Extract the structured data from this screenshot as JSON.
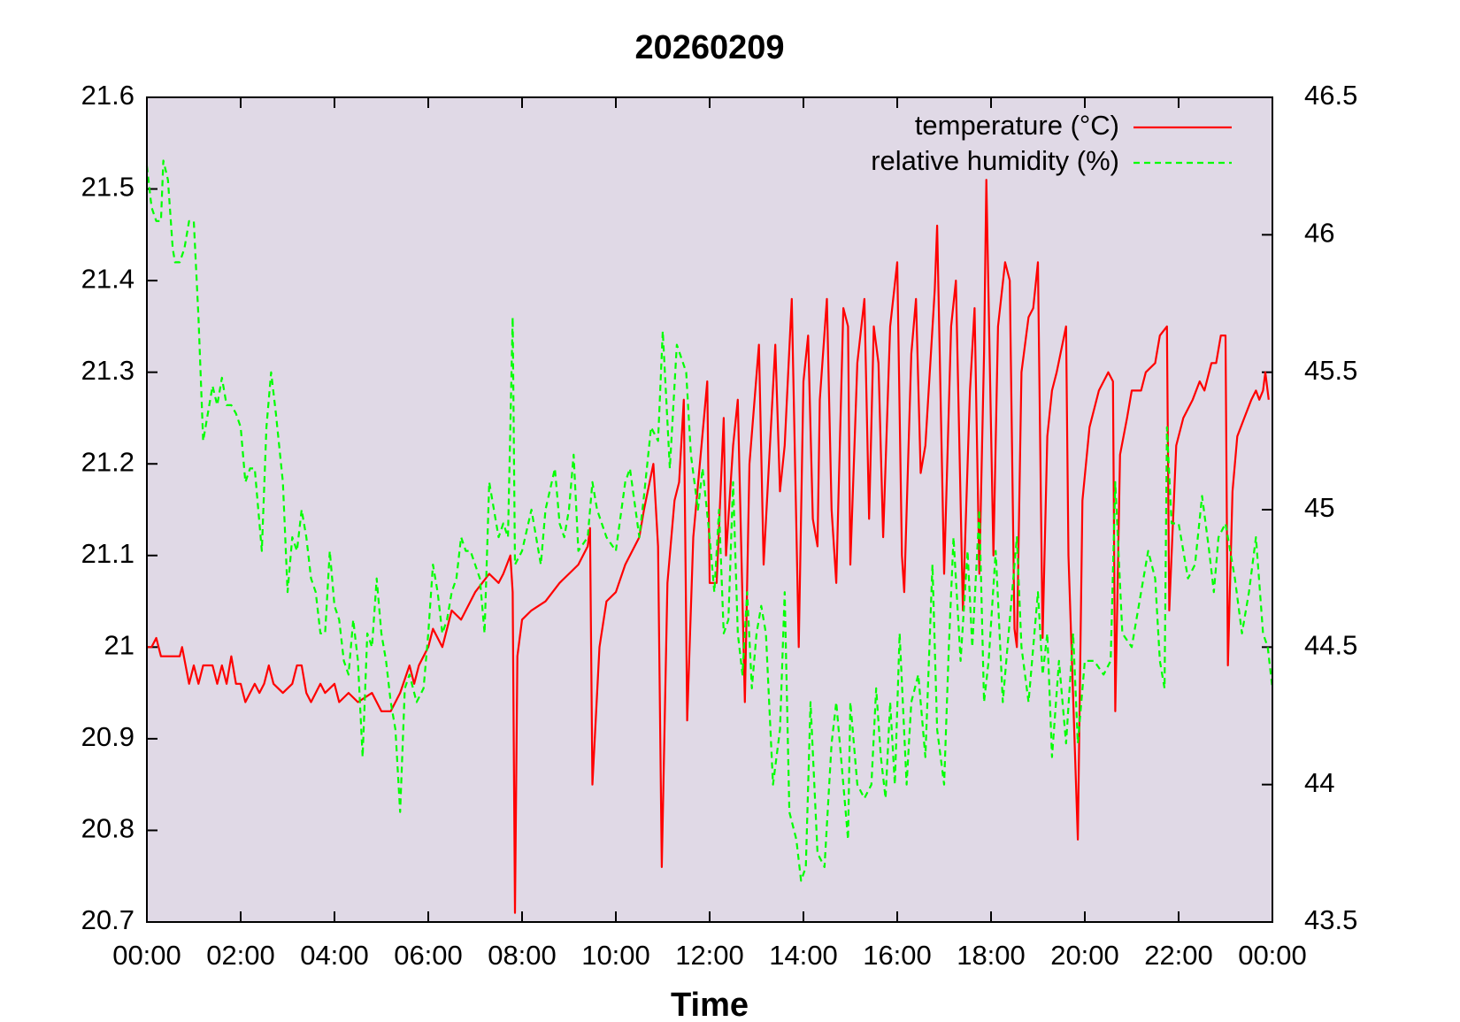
{
  "chart_data": {
    "type": "line",
    "title": "20260209",
    "xlabel": "Time",
    "xlim": [
      0,
      24
    ],
    "xticks": [
      {
        "value": 0,
        "label": "00:00"
      },
      {
        "value": 2,
        "label": "02:00"
      },
      {
        "value": 4,
        "label": "04:00"
      },
      {
        "value": 6,
        "label": "06:00"
      },
      {
        "value": 8,
        "label": "08:00"
      },
      {
        "value": 10,
        "label": "10:00"
      },
      {
        "value": 12,
        "label": "12:00"
      },
      {
        "value": 14,
        "label": "14:00"
      },
      {
        "value": 16,
        "label": "16:00"
      },
      {
        "value": 18,
        "label": "18:00"
      },
      {
        "value": 20,
        "label": "20:00"
      },
      {
        "value": 22,
        "label": "22:00"
      },
      {
        "value": 24,
        "label": "00:00"
      }
    ],
    "ylim": [
      20.7,
      21.6
    ],
    "yticks": [
      20.7,
      20.8,
      20.9,
      21,
      21.1,
      21.2,
      21.3,
      21.4,
      21.5,
      21.6
    ],
    "y2lim": [
      43.5,
      46.5
    ],
    "y2ticks": [
      43.5,
      44,
      44.5,
      45,
      45.5,
      46,
      46.5
    ],
    "legend": "top-right",
    "background": "#e0d9e6",
    "series": [
      {
        "name": "temperature (°C)",
        "color": "#ff0000",
        "style": "solid",
        "x": [
          0,
          0.1,
          0.2,
          0.3,
          0.7,
          0.75,
          0.9,
          1.0,
          1.1,
          1.2,
          1.4,
          1.5,
          1.6,
          1.7,
          1.8,
          1.9,
          2.0,
          2.1,
          2.3,
          2.4,
          2.5,
          2.6,
          2.7,
          2.9,
          3.1,
          3.2,
          3.3,
          3.4,
          3.5,
          3.7,
          3.8,
          4.0,
          4.1,
          4.3,
          4.5,
          4.8,
          5.0,
          5.2,
          5.4,
          5.6,
          5.7,
          5.8,
          6.0,
          6.1,
          6.3,
          6.5,
          6.7,
          6.9,
          7.0,
          7.3,
          7.5,
          7.6,
          7.75,
          7.8,
          7.85,
          7.9,
          8.0,
          8.2,
          8.5,
          8.8,
          9.0,
          9.2,
          9.4,
          9.45,
          9.5,
          9.65,
          9.8,
          10.0,
          10.2,
          10.5,
          10.6,
          10.8,
          10.9,
          10.98,
          11.1,
          11.25,
          11.35,
          11.45,
          11.52,
          11.65,
          11.95,
          12.0,
          12.15,
          12.3,
          12.35,
          12.5,
          12.6,
          12.75,
          12.85,
          13.05,
          13.15,
          13.4,
          13.5,
          13.6,
          13.75,
          13.9,
          14.0,
          14.1,
          14.2,
          14.3,
          14.35,
          14.5,
          14.6,
          14.7,
          14.85,
          14.95,
          15.0,
          15.15,
          15.3,
          15.4,
          15.5,
          15.6,
          15.7,
          15.85,
          16.0,
          16.1,
          16.15,
          16.3,
          16.4,
          16.5,
          16.6,
          16.8,
          16.85,
          17.0,
          17.15,
          17.25,
          17.4,
          17.55,
          17.65,
          17.75,
          17.85,
          17.9,
          18.05,
          18.15,
          18.3,
          18.4,
          18.5,
          18.55,
          18.65,
          18.8,
          18.9,
          19.0,
          19.1,
          19.2,
          19.3,
          19.4,
          19.6,
          19.65,
          19.85,
          19.95,
          20.1,
          20.3,
          20.5,
          20.6,
          20.65,
          20.75,
          20.9,
          21.0,
          21.2,
          21.3,
          21.5,
          21.6,
          21.75,
          21.8,
          21.95,
          22.1,
          22.3,
          22.45,
          22.55,
          22.7,
          22.8,
          22.9,
          23.0,
          23.05,
          23.15,
          23.25,
          23.4,
          23.55,
          23.65,
          23.72,
          23.8,
          23.85,
          23.92
        ],
        "values": [
          21.0,
          21.0,
          21.01,
          20.99,
          20.99,
          21.0,
          20.96,
          20.98,
          20.96,
          20.98,
          20.98,
          20.96,
          20.98,
          20.96,
          20.99,
          20.96,
          20.96,
          20.94,
          20.96,
          20.95,
          20.96,
          20.98,
          20.96,
          20.95,
          20.96,
          20.98,
          20.98,
          20.95,
          20.94,
          20.96,
          20.95,
          20.96,
          20.94,
          20.95,
          20.94,
          20.95,
          20.93,
          20.93,
          20.95,
          20.98,
          20.96,
          20.98,
          21.0,
          21.02,
          21.0,
          21.04,
          21.03,
          21.05,
          21.06,
          21.08,
          21.07,
          21.08,
          21.1,
          21.06,
          20.71,
          20.99,
          21.03,
          21.04,
          21.05,
          21.07,
          21.08,
          21.09,
          21.11,
          21.13,
          20.85,
          21.0,
          21.05,
          21.06,
          21.09,
          21.12,
          21.15,
          21.2,
          21.11,
          20.76,
          21.07,
          21.16,
          21.18,
          21.27,
          20.92,
          21.12,
          21.29,
          21.07,
          21.07,
          21.25,
          21.1,
          21.22,
          21.27,
          20.94,
          21.2,
          21.33,
          21.09,
          21.33,
          21.17,
          21.22,
          21.38,
          21.0,
          21.29,
          21.34,
          21.14,
          21.11,
          21.27,
          21.38,
          21.15,
          21.07,
          21.37,
          21.35,
          21.09,
          21.31,
          21.38,
          21.14,
          21.35,
          21.31,
          21.12,
          21.35,
          21.42,
          21.1,
          21.06,
          21.32,
          21.38,
          21.19,
          21.22,
          21.39,
          21.46,
          21.08,
          21.35,
          21.4,
          21.04,
          21.28,
          21.37,
          21.08,
          21.32,
          21.51,
          21.1,
          21.35,
          21.42,
          21.4,
          21.02,
          21.0,
          21.3,
          21.36,
          21.37,
          21.42,
          21.01,
          21.23,
          21.28,
          21.3,
          21.35,
          21.1,
          20.79,
          21.16,
          21.24,
          21.28,
          21.3,
          21.29,
          20.93,
          21.21,
          21.25,
          21.28,
          21.28,
          21.3,
          21.31,
          21.34,
          21.35,
          21.04,
          21.22,
          21.25,
          21.27,
          21.29,
          21.28,
          21.31,
          21.31,
          21.34,
          21.34,
          20.98,
          21.17,
          21.23,
          21.25,
          21.27,
          21.28,
          21.27,
          21.28,
          21.3,
          21.27
        ]
      },
      {
        "name": "relative humidity (%)",
        "color": "#00ff00",
        "style": "dashed",
        "axis": "y2",
        "x": [
          0,
          0.1,
          0.2,
          0.3,
          0.35,
          0.45,
          0.55,
          0.6,
          0.7,
          0.8,
          0.9,
          1.0,
          1.1,
          1.2,
          1.3,
          1.4,
          1.5,
          1.6,
          1.7,
          1.8,
          1.9,
          2.0,
          2.1,
          2.2,
          2.3,
          2.45,
          2.55,
          2.65,
          2.75,
          2.9,
          3.0,
          3.1,
          3.2,
          3.3,
          3.4,
          3.5,
          3.6,
          3.7,
          3.8,
          3.9,
          4.0,
          4.1,
          4.2,
          4.3,
          4.4,
          4.5,
          4.6,
          4.7,
          4.8,
          4.9,
          5.0,
          5.1,
          5.2,
          5.3,
          5.4,
          5.5,
          5.6,
          5.75,
          5.9,
          6.0,
          6.1,
          6.2,
          6.3,
          6.4,
          6.5,
          6.6,
          6.7,
          6.8,
          6.9,
          7.1,
          7.2,
          7.3,
          7.4,
          7.5,
          7.6,
          7.7,
          7.8,
          7.85,
          8.0,
          8.2,
          8.4,
          8.5,
          8.7,
          8.8,
          8.9,
          9.0,
          9.1,
          9.2,
          9.4,
          9.5,
          9.6,
          9.8,
          10.0,
          10.2,
          10.3,
          10.5,
          10.6,
          10.75,
          10.9,
          11.0,
          11.15,
          11.3,
          11.5,
          11.6,
          11.75,
          11.85,
          12.0,
          12.1,
          12.2,
          12.3,
          12.4,
          12.5,
          12.6,
          12.7,
          12.8,
          12.9,
          13.0,
          13.1,
          13.2,
          13.35,
          13.5,
          13.6,
          13.7,
          13.85,
          13.95,
          14.05,
          14.15,
          14.3,
          14.45,
          14.6,
          14.7,
          14.85,
          14.95,
          15.0,
          15.15,
          15.3,
          15.45,
          15.55,
          15.65,
          15.75,
          15.85,
          15.95,
          16.05,
          16.2,
          16.3,
          16.45,
          16.6,
          16.75,
          16.85,
          17.0,
          17.1,
          17.2,
          17.35,
          17.5,
          17.6,
          17.75,
          17.85,
          17.95,
          18.1,
          18.25,
          18.4,
          18.55,
          18.65,
          18.8,
          19.0,
          19.1,
          19.2,
          19.3,
          19.45,
          19.6,
          19.75,
          19.85,
          20.0,
          20.2,
          20.4,
          20.55,
          20.65,
          20.8,
          21.0,
          21.2,
          21.35,
          21.5,
          21.6,
          21.7,
          21.75,
          21.85,
          22.0,
          22.2,
          22.35,
          22.5,
          22.65,
          22.75,
          22.85,
          23.0,
          23.2,
          23.35,
          23.5,
          23.65,
          23.8,
          23.9,
          24.0
        ],
        "values": [
          46.25,
          46.1,
          46.05,
          46.05,
          46.27,
          46.2,
          45.95,
          45.9,
          45.9,
          45.95,
          46.05,
          46.05,
          45.7,
          45.25,
          45.35,
          45.45,
          45.38,
          45.48,
          45.38,
          45.38,
          45.35,
          45.3,
          45.1,
          45.15,
          45.15,
          44.85,
          45.3,
          45.5,
          45.35,
          45.1,
          44.7,
          44.9,
          44.85,
          45.0,
          44.9,
          44.75,
          44.7,
          44.55,
          44.55,
          44.85,
          44.65,
          44.6,
          44.45,
          44.4,
          44.6,
          44.45,
          44.1,
          44.55,
          44.5,
          44.75,
          44.55,
          44.45,
          44.3,
          44.2,
          43.9,
          44.35,
          44.4,
          44.3,
          44.35,
          44.55,
          44.8,
          44.7,
          44.55,
          44.6,
          44.7,
          44.75,
          44.9,
          44.85,
          44.85,
          44.75,
          44.55,
          45.1,
          45.0,
          44.9,
          44.95,
          44.9,
          45.7,
          44.8,
          44.85,
          45.0,
          44.8,
          45.0,
          45.15,
          44.95,
          44.9,
          45.0,
          45.2,
          44.85,
          44.9,
          45.1,
          45.0,
          44.9,
          44.85,
          45.1,
          45.15,
          44.9,
          45.05,
          45.3,
          45.25,
          45.65,
          45.15,
          45.6,
          45.5,
          45.2,
          45.0,
          45.15,
          44.9,
          44.7,
          45.0,
          44.55,
          44.6,
          45.1,
          44.55,
          44.4,
          44.7,
          44.35,
          44.55,
          44.65,
          44.55,
          44.0,
          44.2,
          44.7,
          43.9,
          43.8,
          43.65,
          43.7,
          44.3,
          43.75,
          43.7,
          44.15,
          44.3,
          44.0,
          43.8,
          44.3,
          44.0,
          43.95,
          44.0,
          44.35,
          44.1,
          43.95,
          44.3,
          44.0,
          44.55,
          44.0,
          44.3,
          44.4,
          44.1,
          44.8,
          44.2,
          44.0,
          44.5,
          44.9,
          44.45,
          44.85,
          44.5,
          45.0,
          44.3,
          44.45,
          44.85,
          44.3,
          44.6,
          44.9,
          44.5,
          44.3,
          44.7,
          44.4,
          44.55,
          44.1,
          44.45,
          44.15,
          44.55,
          44.15,
          44.45,
          44.45,
          44.4,
          44.45,
          45.1,
          44.55,
          44.5,
          44.7,
          44.85,
          44.75,
          44.45,
          44.35,
          45.3,
          44.95,
          44.95,
          44.75,
          44.8,
          45.05,
          44.85,
          44.7,
          44.9,
          44.95,
          44.75,
          44.55,
          44.7,
          44.9,
          44.55,
          44.5,
          44.35
        ]
      }
    ]
  }
}
